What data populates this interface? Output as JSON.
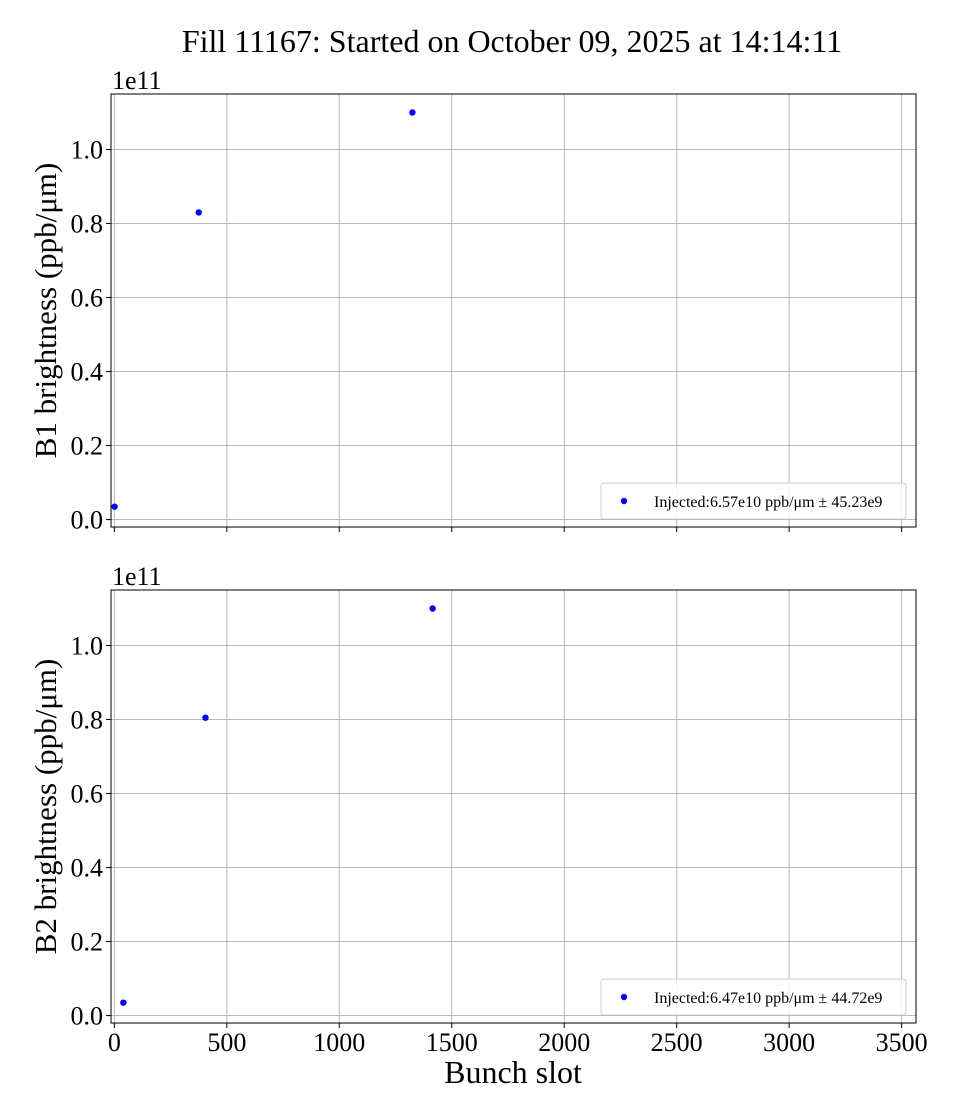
{
  "figure": {
    "title": "Fill 11167: Started on October 09, 2025 at 14:14:11",
    "xlabel": "Bunch slot",
    "marker_color": "#0000ff",
    "grid_color": "#b0b0b0"
  },
  "chart_data": [
    {
      "type": "scatter",
      "title": "",
      "xlabel": "",
      "ylabel": "B1 brightness (ppb/μm)",
      "offset_label": "1e11",
      "xlim": [
        -15,
        3564
      ],
      "ylim": [
        -0.02,
        1.15
      ],
      "xticks": [
        0,
        500,
        1000,
        1500,
        2000,
        2500,
        3000,
        3500
      ],
      "yticks": [
        0.0,
        0.2,
        0.4,
        0.6,
        0.8,
        1.0
      ],
      "ytick_labels": [
        "0.0",
        "0.2",
        "0.4",
        "0.6",
        "0.8",
        "1.0"
      ],
      "show_xtick_labels": false,
      "grid": true,
      "legend": {
        "placement": "lower-right",
        "label": "Injected:6.57e10 ppb/μm ± 45.23e9"
      },
      "series": [
        {
          "name": "Injected:6.57e10 ppb/μm ± 45.23e9",
          "x": [
            1,
            375,
            1325
          ],
          "y": [
            0.035,
            0.83,
            1.1
          ]
        }
      ]
    },
    {
      "type": "scatter",
      "title": "",
      "xlabel": "Bunch slot",
      "ylabel": "B2 brightness (ppb/μm)",
      "offset_label": "1e11",
      "xlim": [
        -15,
        3564
      ],
      "ylim": [
        -0.02,
        1.15
      ],
      "xticks": [
        0,
        500,
        1000,
        1500,
        2000,
        2500,
        3000,
        3500
      ],
      "xtick_labels": [
        "0",
        "500",
        "1000",
        "1500",
        "2000",
        "2500",
        "3000",
        "3500"
      ],
      "yticks": [
        0.0,
        0.2,
        0.4,
        0.6,
        0.8,
        1.0
      ],
      "ytick_labels": [
        "0.0",
        "0.2",
        "0.4",
        "0.6",
        "0.8",
        "1.0"
      ],
      "show_xtick_labels": true,
      "grid": true,
      "legend": {
        "placement": "lower-right",
        "label": "Injected:6.47e10 ppb/μm ± 44.72e9"
      },
      "series": [
        {
          "name": "Injected:6.47e10 ppb/μm ± 44.72e9",
          "x": [
            40,
            405,
            1415
          ],
          "y": [
            0.035,
            0.805,
            1.1
          ]
        }
      ]
    }
  ]
}
